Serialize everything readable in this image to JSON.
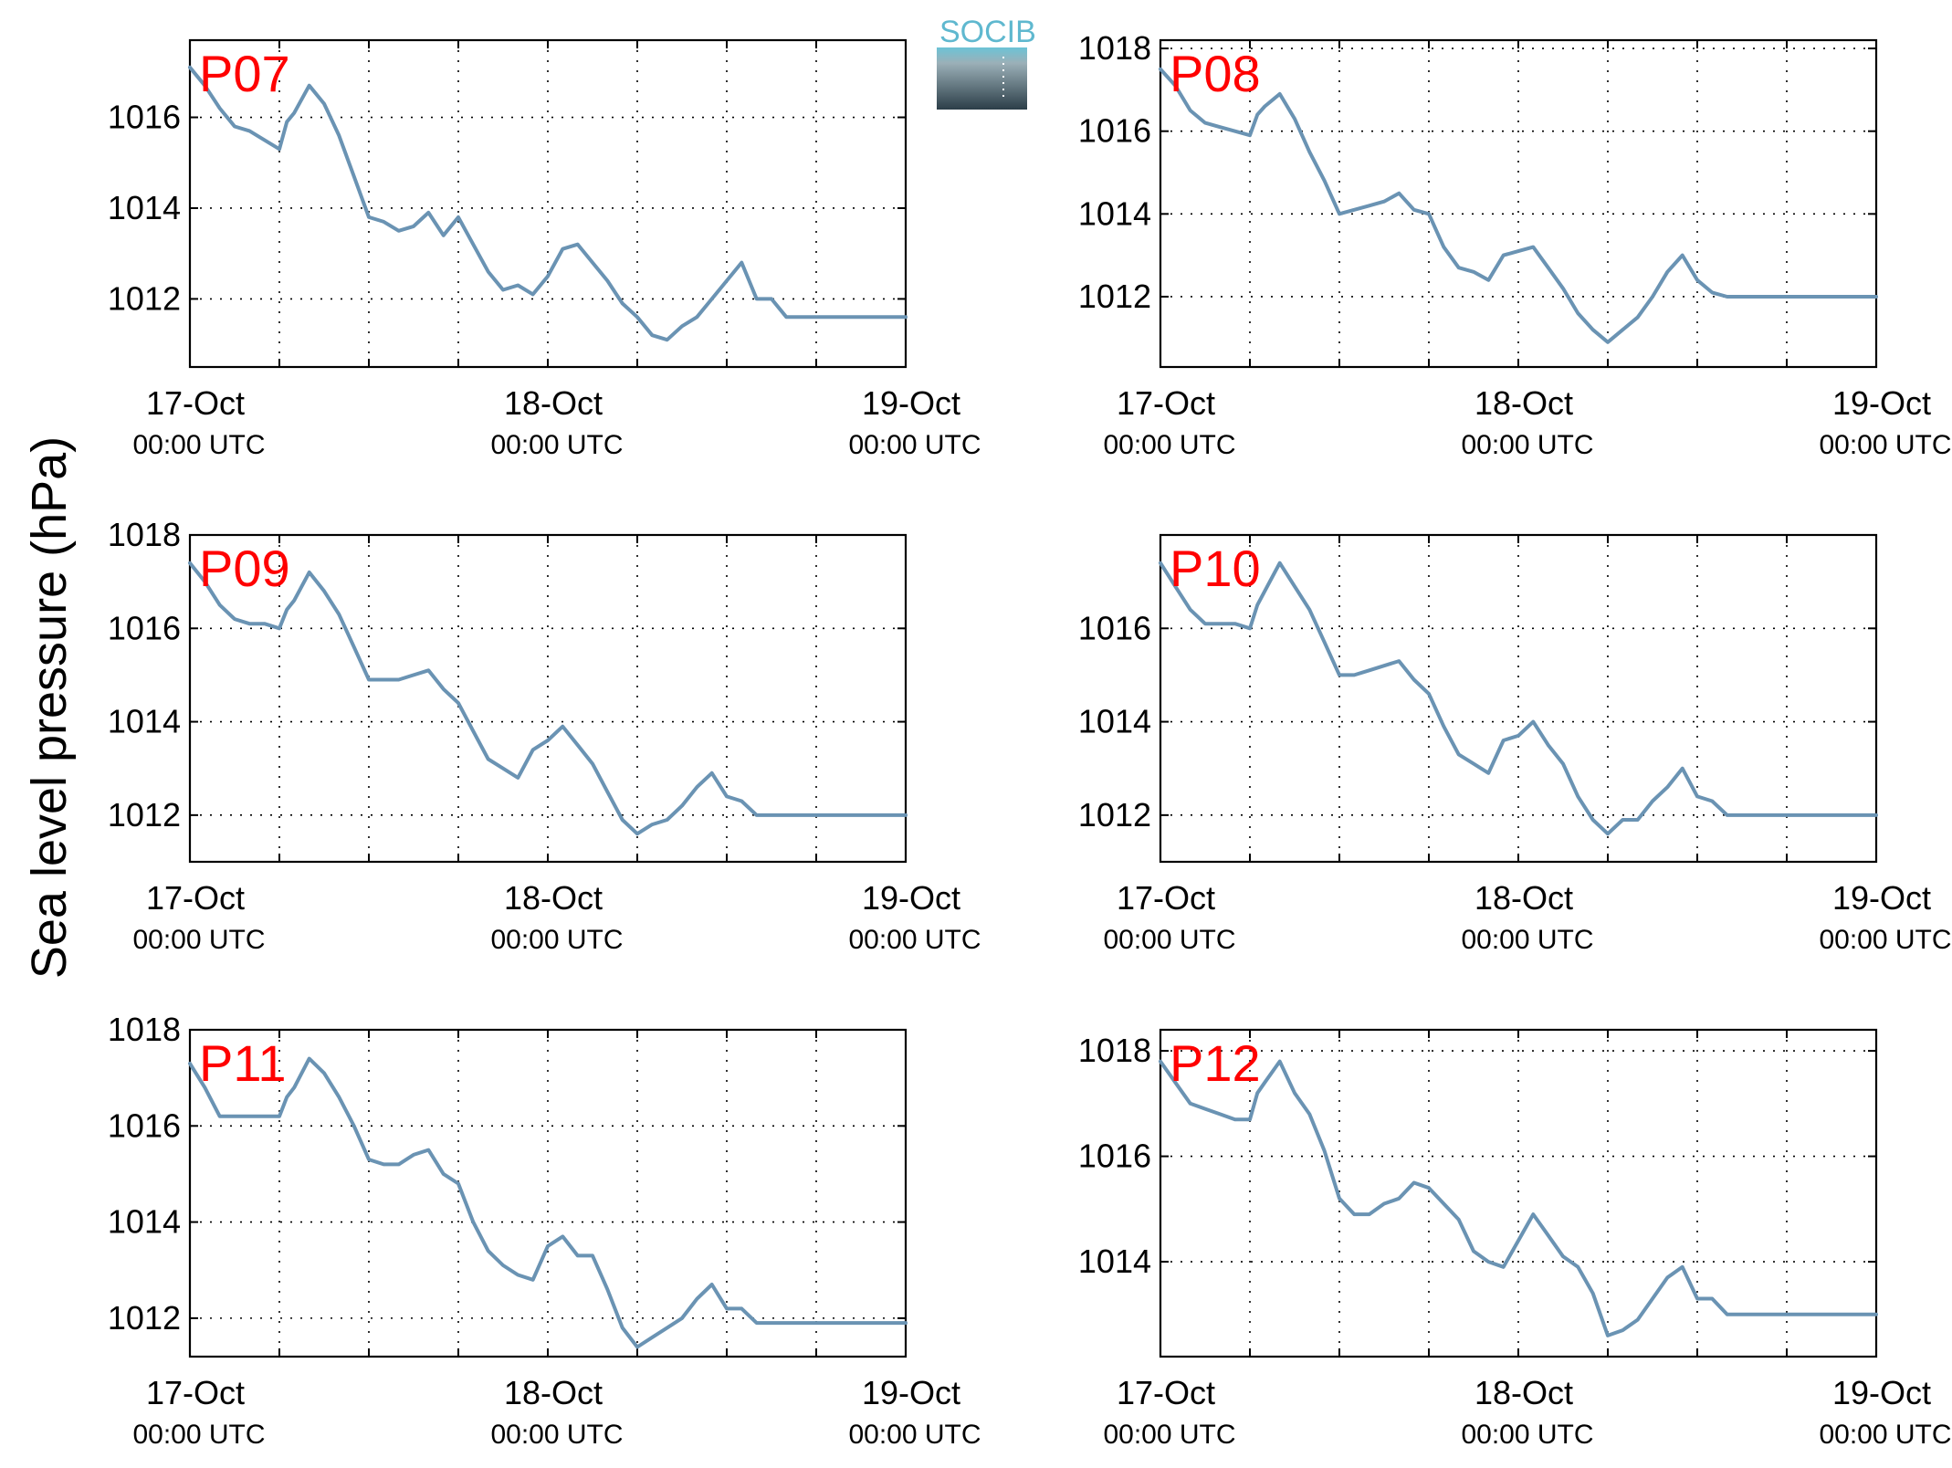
{
  "figure": {
    "ylabel": "Sea level pressure (hPa)",
    "logo_text": "SOCIB",
    "series_color": "#6a93b3",
    "label_color": "#ff0000"
  },
  "chart_data": [
    {
      "type": "line",
      "title": "P07",
      "x_start": "17-Oct 00:00 UTC",
      "x_tick_labels": [
        [
          "17-Oct",
          "00:00 UTC"
        ],
        [
          "18-Oct",
          "00:00 UTC"
        ],
        [
          "19-Oct",
          "00:00 UTC"
        ]
      ],
      "x_range_hours": [
        0,
        48
      ],
      "xtick_step_hours": 6,
      "ylim": [
        1010.5,
        1017.7
      ],
      "yticks": [
        1012,
        1014,
        1016
      ],
      "grid": true,
      "series": [
        {
          "x_hours": [
            0,
            1,
            2,
            3,
            4,
            5,
            6,
            6.5,
            7,
            8,
            9,
            10,
            11,
            12,
            13,
            14,
            15,
            16,
            17,
            18,
            19,
            20,
            21,
            22,
            23,
            24,
            25,
            26,
            27,
            28,
            29,
            30,
            31,
            32,
            33,
            34,
            35,
            36,
            37,
            38,
            39,
            40,
            41,
            42,
            43,
            44,
            45,
            46,
            47,
            48
          ],
          "values": [
            1017.1,
            1016.7,
            1016.2,
            1015.8,
            1015.7,
            1015.5,
            1015.3,
            1015.9,
            1016.1,
            1016.7,
            1016.3,
            1015.6,
            1014.7,
            1013.8,
            1013.7,
            1013.5,
            1013.6,
            1013.9,
            1013.4,
            1013.8,
            1013.2,
            1012.6,
            1012.2,
            1012.3,
            1012.1,
            1012.5,
            1013.1,
            1013.2,
            1012.8,
            1012.4,
            1011.9,
            1011.6,
            1011.2,
            1011.1,
            1011.4,
            1011.6,
            1012.0,
            1012.4,
            1012.8,
            1012.0,
            1012.0,
            1011.6,
            1011.6,
            1011.6,
            1011.6,
            1011.6,
            1011.6,
            1011.6,
            1011.6,
            1011.6
          ]
        }
      ]
    },
    {
      "type": "line",
      "title": "P08",
      "x_start": "17-Oct 00:00 UTC",
      "x_tick_labels": [
        [
          "17-Oct",
          "00:00 UTC"
        ],
        [
          "18-Oct",
          "00:00 UTC"
        ],
        [
          "19-Oct",
          "00:00 UTC"
        ]
      ],
      "x_range_hours": [
        0,
        48
      ],
      "xtick_step_hours": 6,
      "ylim": [
        1010.3,
        1018.2
      ],
      "yticks": [
        1012,
        1014,
        1016,
        1018
      ],
      "grid": true,
      "series": [
        {
          "x_hours": [
            0,
            1,
            2,
            3,
            4,
            5,
            6,
            6.5,
            7,
            8,
            9,
            10,
            11,
            12,
            13,
            14,
            15,
            16,
            17,
            18,
            19,
            20,
            21,
            22,
            23,
            24,
            25,
            26,
            27,
            28,
            29,
            30,
            31,
            32,
            33,
            34,
            35,
            36,
            37,
            38,
            39,
            40,
            41,
            42,
            43,
            44,
            45,
            46,
            47,
            48
          ],
          "values": [
            1017.5,
            1017.1,
            1016.5,
            1016.2,
            1016.1,
            1016.0,
            1015.9,
            1016.4,
            1016.6,
            1016.9,
            1016.3,
            1015.5,
            1014.8,
            1014.0,
            1014.1,
            1014.2,
            1014.3,
            1014.5,
            1014.1,
            1014.0,
            1013.2,
            1012.7,
            1012.6,
            1012.4,
            1013.0,
            1013.1,
            1013.2,
            1012.7,
            1012.2,
            1011.6,
            1011.2,
            1010.9,
            1011.2,
            1011.5,
            1012.0,
            1012.6,
            1013.0,
            1012.4,
            1012.1,
            1012.0,
            1012.0,
            1012.0,
            1012.0,
            1012.0,
            1012.0,
            1012.0,
            1012.0,
            1012.0,
            1012.0,
            1012.0
          ]
        }
      ]
    },
    {
      "type": "line",
      "title": "P09",
      "x_start": "17-Oct 00:00 UTC",
      "x_tick_labels": [
        [
          "17-Oct",
          "00:00 UTC"
        ],
        [
          "18-Oct",
          "00:00 UTC"
        ],
        [
          "19-Oct",
          "00:00 UTC"
        ]
      ],
      "x_range_hours": [
        0,
        48
      ],
      "xtick_step_hours": 6,
      "ylim": [
        1011.0,
        1018.0
      ],
      "yticks": [
        1012,
        1014,
        1016,
        1018
      ],
      "grid": true,
      "series": [
        {
          "x_hours": [
            0,
            1,
            2,
            3,
            4,
            5,
            6,
            6.5,
            7,
            8,
            9,
            10,
            11,
            12,
            13,
            14,
            15,
            16,
            17,
            18,
            19,
            20,
            21,
            22,
            23,
            24,
            25,
            26,
            27,
            28,
            29,
            30,
            31,
            32,
            33,
            34,
            35,
            36,
            37,
            38,
            39,
            40,
            41,
            42,
            43,
            44,
            45,
            46,
            47,
            48
          ],
          "values": [
            1017.4,
            1017.0,
            1016.5,
            1016.2,
            1016.1,
            1016.1,
            1016.0,
            1016.4,
            1016.6,
            1017.2,
            1016.8,
            1016.3,
            1015.6,
            1014.9,
            1014.9,
            1014.9,
            1015.0,
            1015.1,
            1014.7,
            1014.4,
            1013.8,
            1013.2,
            1013.0,
            1012.8,
            1013.4,
            1013.6,
            1013.9,
            1013.5,
            1013.1,
            1012.5,
            1011.9,
            1011.6,
            1011.8,
            1011.9,
            1012.2,
            1012.6,
            1012.9,
            1012.4,
            1012.3,
            1012.0,
            1012.0,
            1012.0,
            1012.0,
            1012.0,
            1012.0,
            1012.0,
            1012.0,
            1012.0,
            1012.0,
            1012.0
          ]
        }
      ]
    },
    {
      "type": "line",
      "title": "P10",
      "x_start": "17-Oct 00:00 UTC",
      "x_tick_labels": [
        [
          "17-Oct",
          "00:00 UTC"
        ],
        [
          "18-Oct",
          "00:00 UTC"
        ],
        [
          "19-Oct",
          "00:00 UTC"
        ]
      ],
      "x_range_hours": [
        0,
        48
      ],
      "xtick_step_hours": 6,
      "ylim": [
        1011.0,
        1018.0
      ],
      "yticks": [
        1012,
        1014,
        1016
      ],
      "grid": true,
      "series": [
        {
          "x_hours": [
            0,
            1,
            2,
            3,
            4,
            5,
            6,
            6.5,
            7,
            8,
            9,
            10,
            11,
            12,
            13,
            14,
            15,
            16,
            17,
            18,
            19,
            20,
            21,
            22,
            23,
            24,
            25,
            26,
            27,
            28,
            29,
            30,
            31,
            32,
            33,
            34,
            35,
            36,
            37,
            38,
            39,
            40,
            41,
            42,
            43,
            44,
            45,
            46,
            47,
            48
          ],
          "values": [
            1017.4,
            1016.9,
            1016.4,
            1016.1,
            1016.1,
            1016.1,
            1016.0,
            1016.5,
            1016.8,
            1017.4,
            1016.9,
            1016.4,
            1015.7,
            1015.0,
            1015.0,
            1015.1,
            1015.2,
            1015.3,
            1014.9,
            1014.6,
            1013.9,
            1013.3,
            1013.1,
            1012.9,
            1013.6,
            1013.7,
            1014.0,
            1013.5,
            1013.1,
            1012.4,
            1011.9,
            1011.6,
            1011.9,
            1011.9,
            1012.3,
            1012.6,
            1013.0,
            1012.4,
            1012.3,
            1012.0,
            1012.0,
            1012.0,
            1012.0,
            1012.0,
            1012.0,
            1012.0,
            1012.0,
            1012.0,
            1012.0,
            1012.0
          ]
        }
      ]
    },
    {
      "type": "line",
      "title": "P11",
      "x_start": "17-Oct 00:00 UTC",
      "x_tick_labels": [
        [
          "17-Oct",
          "00:00 UTC"
        ],
        [
          "18-Oct",
          "00:00 UTC"
        ],
        [
          "19-Oct",
          "00:00 UTC"
        ]
      ],
      "x_range_hours": [
        0,
        48
      ],
      "xtick_step_hours": 6,
      "ylim": [
        1011.2,
        1018.0
      ],
      "yticks": [
        1012,
        1014,
        1016,
        1018
      ],
      "grid": true,
      "series": [
        {
          "x_hours": [
            0,
            1,
            2,
            3,
            4,
            5,
            6,
            6.5,
            7,
            8,
            9,
            10,
            11,
            12,
            13,
            14,
            15,
            16,
            17,
            18,
            19,
            20,
            21,
            22,
            23,
            24,
            25,
            26,
            27,
            28,
            29,
            30,
            31,
            32,
            33,
            34,
            35,
            36,
            37,
            38,
            39,
            40,
            41,
            42,
            43,
            44,
            45,
            46,
            47,
            48
          ],
          "values": [
            1017.3,
            1016.8,
            1016.2,
            1016.2,
            1016.2,
            1016.2,
            1016.2,
            1016.6,
            1016.8,
            1017.4,
            1017.1,
            1016.6,
            1016.0,
            1015.3,
            1015.2,
            1015.2,
            1015.4,
            1015.5,
            1015.0,
            1014.8,
            1014.0,
            1013.4,
            1013.1,
            1012.9,
            1012.8,
            1013.5,
            1013.7,
            1013.3,
            1013.3,
            1012.6,
            1011.8,
            1011.4,
            1011.6,
            1011.8,
            1012.0,
            1012.4,
            1012.7,
            1012.2,
            1012.2,
            1011.9,
            1011.9,
            1011.9,
            1011.9,
            1011.9,
            1011.9,
            1011.9,
            1011.9,
            1011.9,
            1011.9,
            1011.9
          ]
        }
      ]
    },
    {
      "type": "line",
      "title": "P12",
      "x_start": "17-Oct 00:00 UTC",
      "x_tick_labels": [
        [
          "17-Oct",
          "00:00 UTC"
        ],
        [
          "18-Oct",
          "00:00 UTC"
        ],
        [
          "19-Oct",
          "00:00 UTC"
        ]
      ],
      "x_range_hours": [
        0,
        48
      ],
      "xtick_step_hours": 6,
      "ylim": [
        1012.2,
        1018.4
      ],
      "yticks": [
        1014,
        1016,
        1018
      ],
      "grid": true,
      "series": [
        {
          "x_hours": [
            0,
            1,
            2,
            3,
            4,
            5,
            6,
            6.5,
            7,
            8,
            9,
            10,
            11,
            12,
            13,
            14,
            15,
            16,
            17,
            18,
            19,
            20,
            21,
            22,
            23,
            24,
            25,
            26,
            27,
            28,
            29,
            30,
            31,
            32,
            33,
            34,
            35,
            36,
            37,
            38,
            39,
            40,
            41,
            42,
            43,
            44,
            45,
            46,
            47,
            48
          ],
          "values": [
            1017.8,
            1017.4,
            1017.0,
            1016.9,
            1016.8,
            1016.7,
            1016.7,
            1017.2,
            1017.4,
            1017.8,
            1017.2,
            1016.8,
            1016.1,
            1015.2,
            1014.9,
            1014.9,
            1015.1,
            1015.2,
            1015.5,
            1015.4,
            1015.1,
            1014.8,
            1014.2,
            1014.0,
            1013.9,
            1014.4,
            1014.9,
            1014.5,
            1014.1,
            1013.9,
            1013.4,
            1012.6,
            1012.7,
            1012.9,
            1013.3,
            1013.7,
            1013.9,
            1013.3,
            1013.3,
            1013.0,
            1013.0,
            1013.0,
            1013.0,
            1013.0,
            1013.0,
            1013.0,
            1013.0,
            1013.0,
            1013.0,
            1013.0
          ]
        }
      ]
    }
  ]
}
